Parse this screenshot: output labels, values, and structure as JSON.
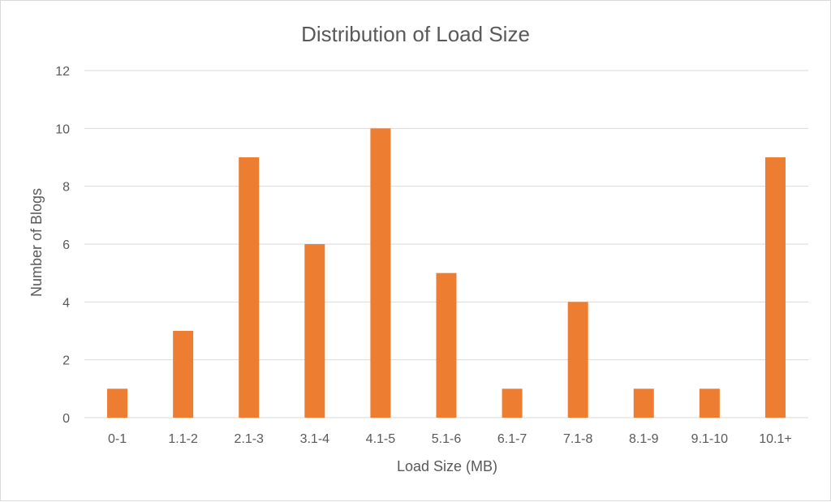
{
  "chart_data": {
    "type": "bar",
    "title": "Distribution of Load Size",
    "xlabel": "Load Size (MB)",
    "ylabel": "Number of Blogs",
    "categories": [
      "0-1",
      "1.1-2",
      "2.1-3",
      "3.1-4",
      "4.1-5",
      "5.1-6",
      "6.1-7",
      "7.1-8",
      "8.1-9",
      "9.1-10",
      "10.1+"
    ],
    "values": [
      1,
      3,
      9,
      6,
      10,
      5,
      1,
      4,
      1,
      1,
      9
    ],
    "ylim": [
      0,
      12
    ],
    "yticks": [
      "0",
      "2",
      "4",
      "6",
      "8",
      "10",
      "12"
    ],
    "grid": true,
    "legend": "none",
    "bar_color": "#ED7D31",
    "grid_color": "#D9D9D9",
    "text_color": "#595959"
  }
}
